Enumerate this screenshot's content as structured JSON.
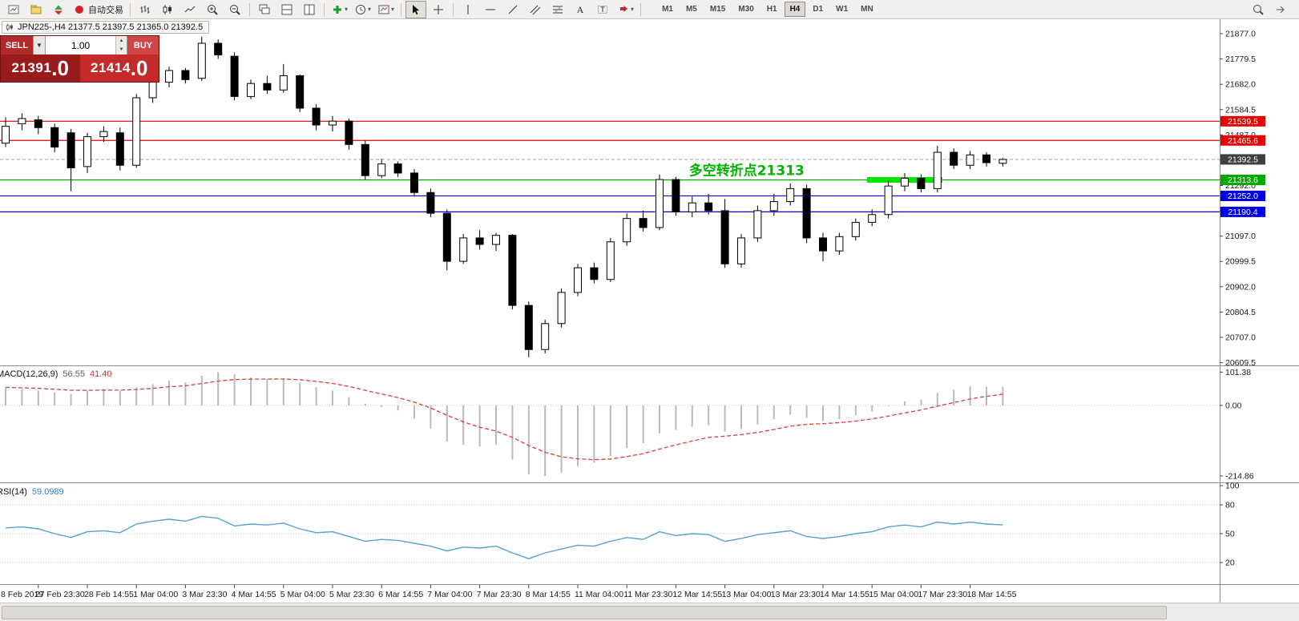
{
  "window": {
    "chart_title": "JPN225-,H4 21377.5 21397.5 21365.0 21392.5"
  },
  "toolbar": {
    "buttons": [
      {
        "name": "new-chart-button",
        "icon": "new-chart"
      },
      {
        "name": "profiles-button",
        "icon": "profiles"
      },
      {
        "name": "new-order-button",
        "icon": "new-order"
      },
      {
        "name": "auto-trading-button",
        "icon": "autotrading",
        "label": "自动交易"
      },
      {
        "sep": true
      },
      {
        "name": "bar-chart-button",
        "icon": "bar-chart"
      },
      {
        "name": "candlestick-chart-button",
        "icon": "candles"
      },
      {
        "name": "line-chart-button",
        "icon": "line-chart"
      },
      {
        "name": "zoom-in-button",
        "icon": "zoom-in"
      },
      {
        "name": "zoom-out-button",
        "icon": "zoom-out"
      },
      {
        "sep": true
      },
      {
        "name": "cascade-windows-button",
        "icon": "cascade"
      },
      {
        "name": "tile-horizontally-button",
        "icon": "tile-h"
      },
      {
        "name": "tile-vertically-button",
        "icon": "tile-v"
      },
      {
        "sep": true
      },
      {
        "name": "indicators-button",
        "icon": "indicators",
        "dropdown": true
      },
      {
        "name": "periods-button",
        "icon": "periods",
        "dropdown": true
      },
      {
        "name": "templates-button",
        "icon": "templates",
        "dropdown": true
      },
      {
        "sep": true
      },
      {
        "name": "cursor-button",
        "icon": "cursor",
        "active": true
      },
      {
        "name": "crosshair-button",
        "icon": "crosshair"
      },
      {
        "sep": true
      },
      {
        "name": "vertical-line-button",
        "icon": "vline"
      },
      {
        "name": "horizontal-line-button",
        "icon": "hline"
      },
      {
        "name": "trendline-button",
        "icon": "trendline"
      },
      {
        "name": "equidistant-channel-button",
        "icon": "channel"
      },
      {
        "name": "fibonacci-button",
        "icon": "fibo"
      },
      {
        "name": "text-button",
        "icon": "text"
      },
      {
        "name": "text-label-button",
        "icon": "label"
      },
      {
        "name": "arrows-button",
        "icon": "arrows",
        "dropdown": true
      },
      {
        "sep": true
      }
    ],
    "timeframes": [
      "M1",
      "M5",
      "M15",
      "M30",
      "H1",
      "H4",
      "D1",
      "W1",
      "MN"
    ],
    "active_timeframe": "H4",
    "right_buttons": [
      {
        "name": "quick-search-button",
        "icon": "search"
      },
      {
        "name": "chart-shift-button",
        "icon": "shift"
      }
    ]
  },
  "trade_panel": {
    "sell_label": "SELL",
    "buy_label": "BUY",
    "volume": "1.00",
    "sell_price_main": "21391",
    "sell_price_frac": ".0",
    "buy_price_main": "21414",
    "buy_price_frac": ".0"
  },
  "chart_data": {
    "type": "candlestick",
    "symbol": "JPN225-",
    "timeframe": "H4",
    "current_bar": {
      "open": 21377.5,
      "high": 21397.5,
      "low": 21365.0,
      "close": 21392.5
    },
    "price_axis": {
      "tick_labels": [
        "21877.0",
        "21779.5",
        "21682.0",
        "21584.5",
        "21487.0",
        "21389.5",
        "21292.0",
        "21194.5",
        "21097.0",
        "20999.5",
        "20902.0",
        "20804.5",
        "20707.0",
        "20609.5"
      ],
      "min": 20602,
      "max": 21932.6
    },
    "levels": [
      {
        "price": 21539.5,
        "color": "#e60000"
      },
      {
        "price": 21465.6,
        "color": "#e60000"
      },
      {
        "price": 21392.5,
        "color": "#a8a8a8",
        "dash": "4 3"
      },
      {
        "price": 21313.6,
        "color": "#00a800"
      },
      {
        "price": 21252.0,
        "color": "#0000e6"
      },
      {
        "price": 21190.4,
        "color": "#0000e6"
      }
    ],
    "price_badges": [
      {
        "label": "21539.5",
        "price": 21539.5,
        "bg": "#e60000"
      },
      {
        "label": "21465.6",
        "price": 21465.6,
        "bg": "#e60000"
      },
      {
        "label": "21392.5",
        "price": 21392.5,
        "bg": "#404040"
      },
      {
        "label": "21313.6",
        "price": 21313.6,
        "bg": "#00a800"
      },
      {
        "label": "21252.0",
        "price": 21252.0,
        "bg": "#0000e6"
      },
      {
        "label": "21190.4",
        "price": 21190.4,
        "bg": "#0000e6"
      }
    ],
    "annotation": {
      "text": "多空转折点21313",
      "bar": 41.8,
      "price": 21332,
      "color": "#00b400"
    },
    "highlight_segment": {
      "from_bar": 52.7,
      "to_bar": 57.3,
      "price": 21313.6,
      "color": "#00e600",
      "width": 7
    },
    "candles": [
      [
        21455,
        21555,
        21440,
        21520
      ],
      [
        21530,
        21570,
        21505,
        21550
      ],
      [
        21545,
        21560,
        21490,
        21515
      ],
      [
        21515,
        21530,
        21420,
        21440
      ],
      [
        21495,
        21510,
        21270,
        21360
      ],
      [
        21365,
        21495,
        21340,
        21480
      ],
      [
        21480,
        21520,
        21460,
        21500
      ],
      [
        21495,
        21515,
        21350,
        21370
      ],
      [
        21370,
        21645,
        21360,
        21630
      ],
      [
        21630,
        21710,
        21610,
        21690
      ],
      [
        21690,
        21750,
        21670,
        21735
      ],
      [
        21735,
        21745,
        21685,
        21700
      ],
      [
        21705,
        21865,
        21695,
        21840
      ],
      [
        21840,
        21855,
        21780,
        21795
      ],
      [
        21790,
        21805,
        21620,
        21635
      ],
      [
        21635,
        21700,
        21625,
        21685
      ],
      [
        21685,
        21715,
        21645,
        21660
      ],
      [
        21660,
        21760,
        21650,
        21715
      ],
      [
        21715,
        21720,
        21575,
        21590
      ],
      [
        21590,
        21605,
        21505,
        21525
      ],
      [
        21525,
        21560,
        21500,
        21540
      ],
      [
        21540,
        21550,
        21430,
        21450
      ],
      [
        21450,
        21465,
        21315,
        21330
      ],
      [
        21330,
        21395,
        21320,
        21375
      ],
      [
        21375,
        21385,
        21325,
        21340
      ],
      [
        21340,
        21355,
        21250,
        21265
      ],
      [
        21265,
        21280,
        21170,
        21185
      ],
      [
        21185,
        21200,
        20965,
        21000
      ],
      [
        21000,
        21105,
        20990,
        21090
      ],
      [
        21090,
        21120,
        21045,
        21065
      ],
      [
        21065,
        21110,
        21040,
        21100
      ],
      [
        21100,
        21105,
        20815,
        20830
      ],
      [
        20830,
        20845,
        20630,
        20660
      ],
      [
        20660,
        20775,
        20645,
        20760
      ],
      [
        20760,
        20895,
        20745,
        20880
      ],
      [
        20880,
        20990,
        20865,
        20975
      ],
      [
        20975,
        20995,
        20915,
        20930
      ],
      [
        20930,
        21090,
        20920,
        21075
      ],
      [
        21075,
        21185,
        21060,
        21165
      ],
      [
        21165,
        21195,
        21115,
        21130
      ],
      [
        21130,
        21335,
        21120,
        21315
      ],
      [
        21315,
        21325,
        21175,
        21190
      ],
      [
        21190,
        21250,
        21170,
        21225
      ],
      [
        21225,
        21260,
        21180,
        21195
      ],
      [
        21195,
        21240,
        20975,
        20990
      ],
      [
        20990,
        21105,
        20975,
        21090
      ],
      [
        21090,
        21215,
        21075,
        21195
      ],
      [
        21195,
        21260,
        21175,
        21230
      ],
      [
        21230,
        21300,
        21215,
        21280
      ],
      [
        21280,
        21295,
        21070,
        21090
      ],
      [
        21090,
        21110,
        21000,
        21040
      ],
      [
        21040,
        21110,
        21025,
        21095
      ],
      [
        21095,
        21165,
        21080,
        21150
      ],
      [
        21150,
        21200,
        21135,
        21180
      ],
      [
        21180,
        21310,
        21165,
        21290
      ],
      [
        21290,
        21340,
        21270,
        21320
      ],
      [
        21320,
        21335,
        21265,
        21280
      ],
      [
        21280,
        21445,
        21265,
        21420
      ],
      [
        21420,
        21435,
        21355,
        21370
      ],
      [
        21370,
        21425,
        21355,
        21410
      ],
      [
        21410,
        21420,
        21365,
        21380
      ],
      [
        21377.5,
        21397.5,
        21365,
        21392.5
      ]
    ],
    "time_axis": {
      "edge_label": "8 Feb 2019",
      "labels": [
        "27 Feb 23:30",
        "28 Feb 14:55",
        "1 Mar 04:00",
        "3 Mar 23:30",
        "4 Mar 14:55",
        "5 Mar 04:00",
        "5 Mar 23:30",
        "6 Mar 14:55",
        "7 Mar 04:00",
        "7 Mar 23:30",
        "8 Mar 14:55",
        "11 Mar 04:00",
        "11 Mar 23:30",
        "12 Mar 14:55",
        "13 Mar 04:00",
        "13 Mar 23:30",
        "14 Mar 14:55",
        "15 Mar 04:00",
        "17 Mar 23:30",
        "18 Mar 14:55"
      ],
      "first_bar": 2,
      "step": 3
    },
    "macd": {
      "label": "MACD(12,26,9)",
      "value_text": "56.55",
      "signal_text": "41.40",
      "axis_tick_labels": [
        "101.38",
        "0.00",
        "-214.86"
      ],
      "axis_tick_values": [
        101.38,
        0,
        -214.86
      ],
      "range": [
        -232,
        117
      ],
      "histogram": [
        55,
        50,
        45,
        40,
        35,
        45,
        50,
        45,
        55,
        65,
        75,
        70,
        90,
        101,
        95,
        85,
        80,
        82,
        70,
        55,
        45,
        25,
        5,
        -5,
        -15,
        -40,
        -70,
        -110,
        -120,
        -125,
        -120,
        -165,
        -210,
        -215,
        -205,
        -185,
        -175,
        -155,
        -130,
        -115,
        -85,
        -75,
        -65,
        -60,
        -80,
        -72,
        -58,
        -42,
        -28,
        -38,
        -48,
        -42,
        -30,
        -18,
        -2,
        12,
        18,
        38,
        48,
        58,
        57,
        56.55
      ]
    },
    "rsi": {
      "label": "RSI(14)",
      "value_text": "59.0989",
      "axis_tick_labels": [
        "100",
        "80",
        "50",
        "20"
      ],
      "axis_tick_values": [
        100,
        80,
        50,
        20
      ],
      "levels": [
        80,
        50,
        20
      ],
      "range": [
        0,
        100
      ],
      "values": [
        56,
        57,
        55,
        50,
        46,
        52,
        53,
        51,
        60,
        63,
        65,
        63,
        68,
        66,
        58,
        60,
        59,
        61,
        55,
        51,
        52,
        47,
        42,
        44,
        43,
        40,
        37,
        32,
        36,
        35,
        37,
        30,
        24,
        30,
        34,
        38,
        37,
        42,
        46,
        44,
        52,
        48,
        50,
        49,
        42,
        45,
        49,
        51,
        53,
        47,
        45,
        47,
        50,
        52,
        57,
        59,
        57,
        62,
        60,
        62,
        60,
        59.1
      ]
    }
  },
  "colors": {
    "up_candle": "#ffffff",
    "down_candle": "#000000",
    "candle_border": "#000000",
    "macd_histogram": "#b9b9b9",
    "macd_signal": "#e03a3a",
    "rsi_line": "#57a0d3",
    "panel_divider": "#8c8c8c",
    "axis_text": "#1a1a1a"
  }
}
